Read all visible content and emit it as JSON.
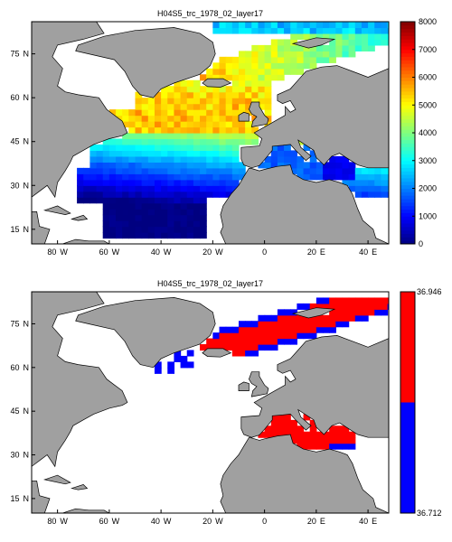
{
  "figure": {
    "panels": [
      {
        "title": "H04S5_trc_1978_02_layer17",
        "colorbar": {
          "ticks": [
            "8000",
            "7000",
            "6000",
            "5000",
            "4000",
            "3000",
            "2000",
            "1000",
            "0"
          ]
        }
      },
      {
        "title": "H04S5_trc_1978_02_layer17",
        "colorbar": {
          "ticks": [
            "36.946",
            "36.712"
          ]
        }
      }
    ],
    "lat_ticks": [
      "75",
      "60",
      "45",
      "30",
      "15"
    ],
    "lat_suffix": "N",
    "lon_ticks": [
      {
        "deg": "80",
        "dir": "W"
      },
      {
        "deg": "60",
        "dir": "W"
      },
      {
        "deg": "40",
        "dir": "W"
      },
      {
        "deg": "20",
        "dir": "W"
      },
      {
        "deg": "0",
        "dir": ""
      },
      {
        "deg": "20",
        "dir": "E"
      },
      {
        "deg": "40",
        "dir": "E"
      }
    ]
  },
  "chart_data": [
    {
      "type": "heatmap",
      "title": "H04S5_trc_1978_02_layer17",
      "xlim": [
        -90,
        48
      ],
      "ylim": [
        10,
        86
      ],
      "colormap": "jet",
      "clim": [
        0,
        8000
      ],
      "colorbar_ticks": [
        0,
        1000,
        2000,
        3000,
        4000,
        5000,
        6000,
        7000,
        8000
      ],
      "land_color": "#a0a0a0",
      "regions": [
        {
          "region": "Tropical/subtropical western Atlantic (13-25N, 60-20W)",
          "value": 0
        },
        {
          "region": "Subtropical Atlantic (25-35N, 65-35W)",
          "value": 1000
        },
        {
          "region": "Central Atlantic (35-45N)",
          "value": 2200
        },
        {
          "region": "Bay of Biscay area",
          "value": 3000
        },
        {
          "region": "Mediterranean Sea",
          "value": 1700
        },
        {
          "region": "Eastern Mediterranean",
          "value": 900
        },
        {
          "region": "Subpolar gyre / Irminger Sea (50-65N)",
          "value": 5800
        },
        {
          "region": "Nordic Seas / Norwegian Sea",
          "value": 5300
        },
        {
          "region": "Barents Sea / Arctic north of Europe",
          "value": 3800
        },
        {
          "region": "Far north (Arctic, 82N)",
          "value": 2500
        }
      ]
    },
    {
      "type": "heatmap",
      "title": "H04S5_trc_1978_02_layer17",
      "xlim": [
        -90,
        48
      ],
      "ylim": [
        10,
        86
      ],
      "clim": [
        36.712,
        36.946
      ],
      "colorbar_ticks": [
        36.712,
        36.946
      ],
      "colormap": "two-color",
      "colors": {
        "low": "#0000ff",
        "high": "#ff0000"
      },
      "land_color": "#a0a0a0",
      "regions": [
        {
          "region": "Nordic Seas / Barents Sea",
          "class": "high"
        },
        {
          "region": "Edges of northern band",
          "class": "low"
        },
        {
          "region": "Irminger / Labrador patches",
          "class": "low"
        },
        {
          "region": "Mediterranean Sea",
          "class": "high"
        },
        {
          "region": "Southeastern Mediterranean",
          "class": "low"
        }
      ]
    }
  ]
}
